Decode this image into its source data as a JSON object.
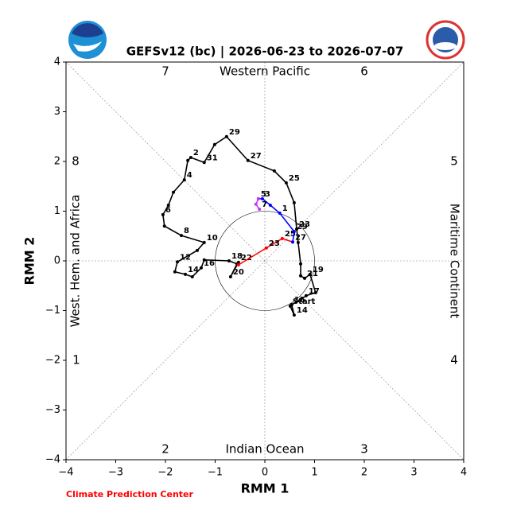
{
  "chart_data": {
    "type": "phase",
    "title": "GEFSv12 (bc) | 2026-06-23 to 2026-07-07",
    "xlabel": "RMM 1",
    "ylabel": "RMM 2",
    "credit": "Climate Prediction Center",
    "xlim": [
      -4,
      4
    ],
    "ylim": [
      -4,
      4
    ],
    "xticks": [
      {
        "value": -4,
        "label": "−4"
      },
      {
        "value": -3,
        "label": "−3"
      },
      {
        "value": -2,
        "label": "−2"
      },
      {
        "value": -1,
        "label": "−1"
      },
      0,
      1,
      2,
      3,
      4
    ],
    "yticks": [
      {
        "value": -4,
        "label": "−4"
      },
      {
        "value": -3,
        "label": "−3"
      },
      {
        "value": -2,
        "label": "−2"
      },
      {
        "value": -1,
        "label": "−1"
      },
      0,
      1,
      2,
      3,
      4
    ],
    "phase_labels": [
      "1",
      "2",
      "3",
      "4",
      "5",
      "6",
      "7",
      "8"
    ],
    "regions": {
      "top": "Western Pacific",
      "bottom": "Indian Ocean",
      "left": "West. Hem. and Africa",
      "right": "Maritime Continent"
    },
    "series": [
      {
        "color": "#000000",
        "x": [
          0.51,
          0.59,
          0.54,
          0.72,
          0.83,
          1.02,
          0.91,
          0.8,
          0.72,
          0.72,
          0.67,
          0.64,
          0.59,
          0.43,
          0.19,
          -0.34,
          -0.77,
          -1.01,
          -1.22,
          -1.49,
          -1.55,
          -1.62,
          -1.84,
          -1.94,
          -2.05,
          -2.02,
          -1.68,
          -1.22,
          -1.36,
          -1.76,
          -1.81,
          -1.6,
          -1.46,
          -1.28,
          -1.22,
          -0.72,
          -0.56,
          -0.69,
          -0.53
        ],
        "y": [
          -0.91,
          -1.09,
          -0.88,
          -0.78,
          -0.7,
          -0.64,
          -0.27,
          -0.35,
          -0.3,
          -0.06,
          0.37,
          0.64,
          1.17,
          1.57,
          1.81,
          2.02,
          2.5,
          2.34,
          1.98,
          2.08,
          2.02,
          1.63,
          1.38,
          1.12,
          0.93,
          0.7,
          0.51,
          0.37,
          0.21,
          -0.02,
          -0.22,
          -0.27,
          -0.32,
          -0.14,
          0.02,
          0.0,
          -0.06,
          -0.32,
          -0.03
        ],
        "labels": [
          "Start",
          "14",
          "15",
          null,
          "17",
          null,
          "19",
          "21",
          null,
          null,
          null,
          "23",
          null,
          "25",
          null,
          "27",
          "29",
          null,
          "31",
          "2",
          null,
          "4",
          null,
          null,
          "6",
          null,
          "8",
          "10",
          null,
          "12",
          null,
          "14",
          null,
          "16",
          null,
          "18",
          null,
          "20",
          "22"
        ]
      },
      {
        "color": "#ff0000",
        "x": [
          -0.53,
          0.03,
          0.35,
          0.56
        ],
        "y": [
          -0.08,
          0.26,
          0.45,
          0.38
        ],
        "labels": [
          null,
          "23",
          "25",
          "27"
        ]
      },
      {
        "color": "#0000ff",
        "x": [
          0.56,
          0.59,
          0.3,
          0.11,
          -0.05,
          -0.13
        ],
        "y": [
          0.38,
          0.59,
          0.96,
          1.12,
          1.25,
          1.25
        ],
        "labels": [
          null,
          "29",
          "1",
          null,
          "3",
          "5"
        ]
      },
      {
        "color": "#cc33ff",
        "x": [
          -0.13,
          -0.18,
          -0.11
        ],
        "y": [
          1.25,
          1.14,
          1.04
        ],
        "labels": [
          null,
          null,
          "7"
        ]
      }
    ]
  }
}
